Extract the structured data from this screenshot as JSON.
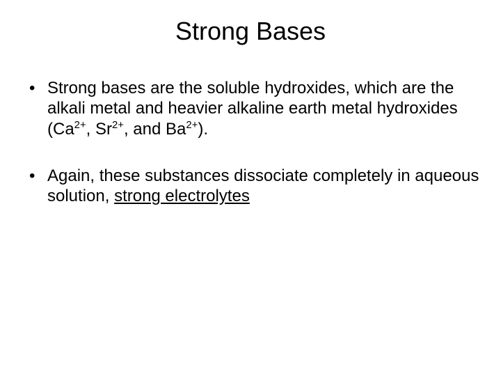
{
  "background_color": "#ffffff",
  "text_color": "#000000",
  "font_family": "Arial",
  "title": {
    "text": "Strong Bases",
    "fontsize": 36,
    "align": "center"
  },
  "bullets": [
    {
      "runs": [
        {
          "text": "Strong bases are the soluble hydroxides, which are the alkali metal and heavier alkaline earth metal hydroxides (Ca"
        },
        {
          "text": "2+",
          "sup": true
        },
        {
          "text": ", Sr"
        },
        {
          "text": "2+",
          "sup": true
        },
        {
          "text": ", and Ba"
        },
        {
          "text": "2+",
          "sup": true
        },
        {
          "text": ")."
        }
      ],
      "fontsize": 24
    },
    {
      "runs": [
        {
          "text": "Again, these substances dissociate completely in aqueous solution, "
        },
        {
          "text": "strong electrolytes",
          "underline": true
        }
      ],
      "fontsize": 24
    }
  ]
}
